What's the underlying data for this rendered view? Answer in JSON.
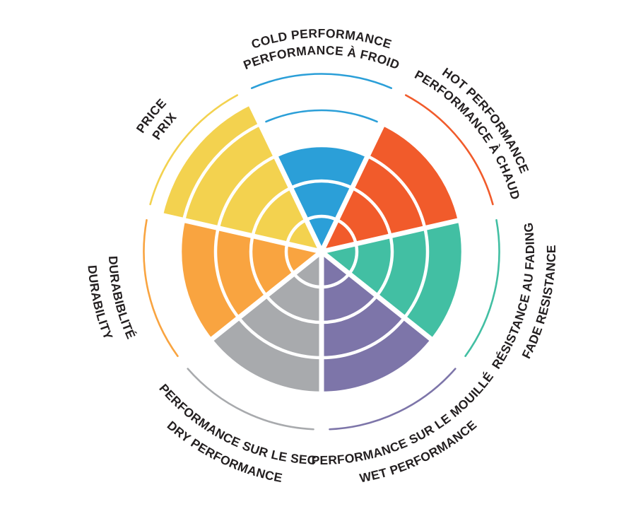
{
  "chart_data": {
    "type": "pie",
    "subtype": "radial-score-wheel",
    "title": "",
    "description": "Bilingual tire characteristics rating wheel with 7 spokes and 5 concentric score rings",
    "max_score": 5,
    "grid": true,
    "legend_position": "around-circle",
    "text_color": "#231F20",
    "ring_divider_color": "#FFFFFF",
    "segments": [
      {
        "id": "cold",
        "label_en": "COLD PERFORMANCE",
        "label_fr": "PERFORMANCE À FROID",
        "color": "#2B9FD8",
        "score": 3,
        "marker_arc_score": 4
      },
      {
        "id": "hot",
        "label_en": "HOT PERFORMANCE",
        "label_fr": "PERFORMANCE À CHAUD",
        "color": "#F15B2B",
        "score": 4,
        "marker_arc_score": null
      },
      {
        "id": "fade",
        "label_en": "FADE RESISTANCE",
        "label_fr": "RÉSISTANCE AU FADING",
        "color": "#42BFA3",
        "score": 4,
        "marker_arc_score": null
      },
      {
        "id": "wet",
        "label_en": "WET PERFORMANCE",
        "label_fr": "PERFORMANCE SUR LE MOUILLÉ",
        "color": "#7D75A9",
        "score": 4,
        "marker_arc_score": null
      },
      {
        "id": "dry",
        "label_en": "DRY PERFORMANCE",
        "label_fr": "PERFORMANCE SUR LE SEC",
        "color": "#A8AAAD",
        "score": 4,
        "marker_arc_score": null
      },
      {
        "id": "durability",
        "label_en": "DURABILITY",
        "label_fr": "DURABIBLITÉ",
        "color": "#F9A440",
        "score": 4,
        "marker_arc_score": null
      },
      {
        "id": "price",
        "label_en": "PRICE",
        "label_fr": "PRIX",
        "color": "#F3D24F",
        "score": 4.6,
        "marker_arc_score": null
      }
    ]
  }
}
